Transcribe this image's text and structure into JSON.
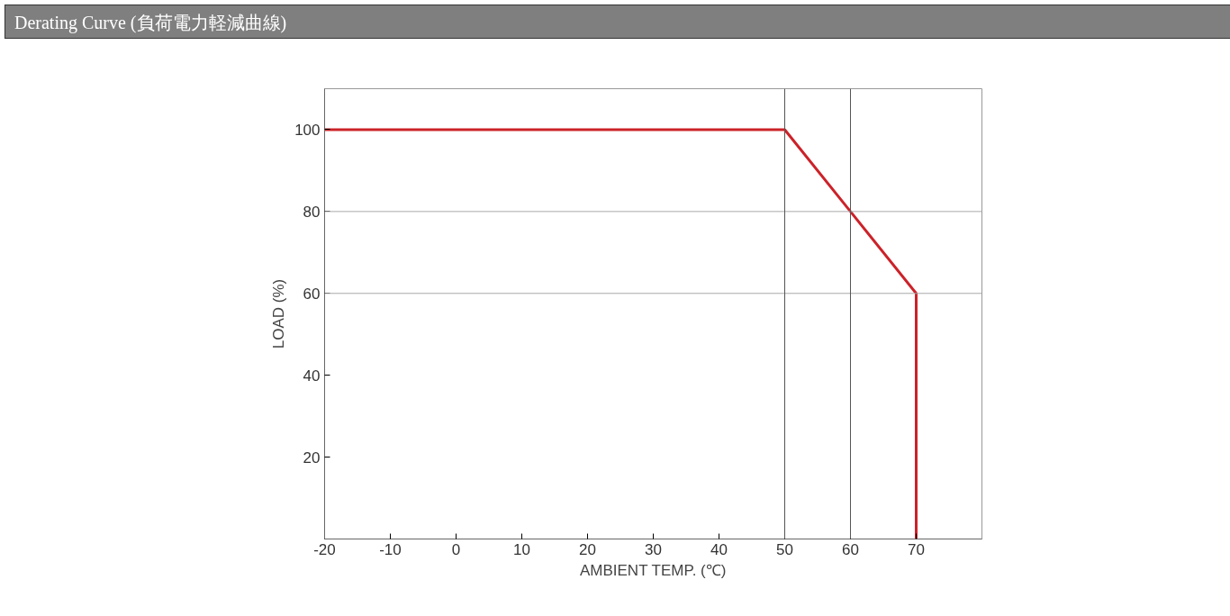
{
  "chart_data": {
    "type": "line",
    "title": "Derating Curve (負荷電力軽減曲線)",
    "xlabel": "AMBIENT TEMP. (℃)",
    "ylabel": "LOAD (%)",
    "series": [
      {
        "color": "#cc2229",
        "x": [
          -20,
          50,
          60,
          70,
          70
        ],
        "values": [
          100,
          100,
          80,
          60,
          0
        ]
      }
    ],
    "xlim": [
      -20,
      80
    ],
    "ylim": [
      0,
      110
    ],
    "xticks": [
      -20,
      -10,
      0,
      10,
      20,
      30,
      40,
      50,
      60,
      70
    ],
    "yticks": [
      20,
      40,
      60,
      80,
      100
    ],
    "ref_lines": [
      {
        "axis": "y",
        "value": 80,
        "color": "#aaaaaa"
      },
      {
        "axis": "y",
        "value": 60,
        "color": "#aaaaaa"
      },
      {
        "axis": "x",
        "value": 50,
        "color": "#555555"
      },
      {
        "axis": "x",
        "value": 60,
        "color": "#555555"
      }
    ],
    "grid": false,
    "marker": "none",
    "line_style": "solid"
  }
}
